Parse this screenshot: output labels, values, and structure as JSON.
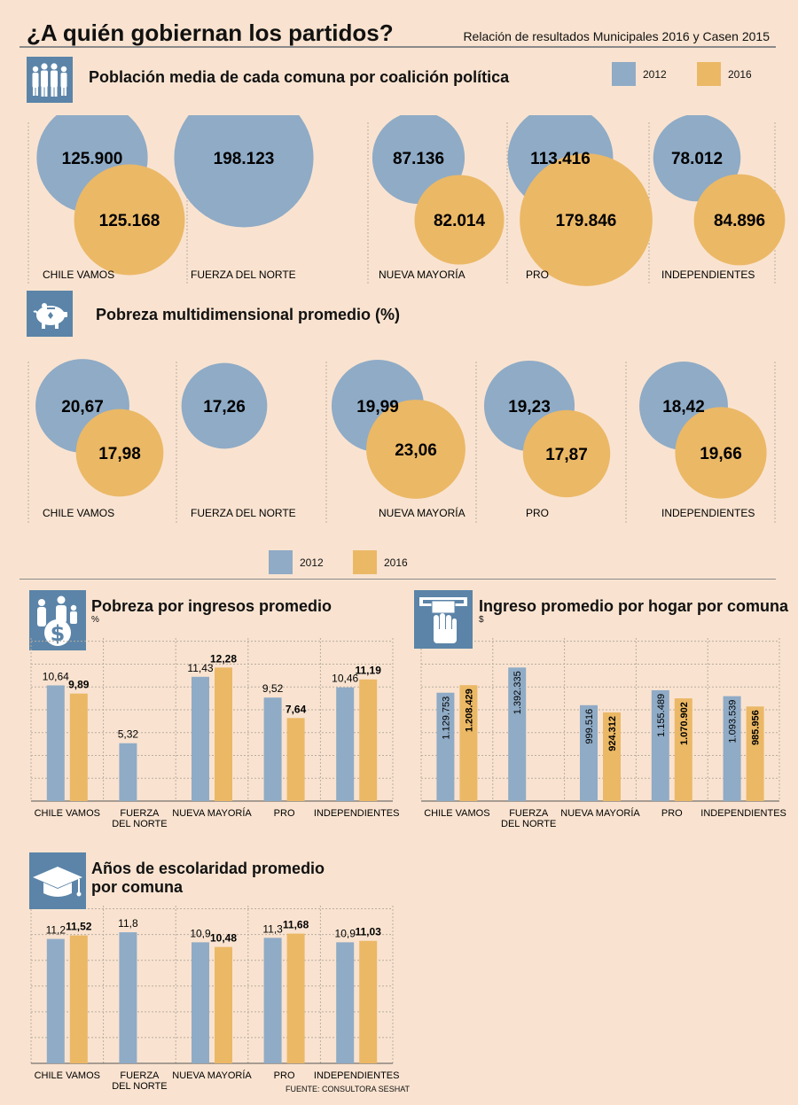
{
  "page": {
    "title": "¿A quién gobiernan los partidos?",
    "subtitle": "Relación de resultados Municipales 2016 y Casen 2015",
    "source": "FUENTE: CONSULTORA SESHAT"
  },
  "colors": {
    "c2012": "#8fabc6",
    "c2016": "#ebb866",
    "icon_bg": "#5b84a8",
    "grid": "#b9aca0"
  },
  "legend": {
    "y2012": "2012",
    "y2016": "2016"
  },
  "icons": {
    "population": "people-group-icon",
    "poverty": "piggy-bank-icon",
    "income_poverty": "family-dollar-icon",
    "household_income": "atm-cash-icon",
    "schooling": "graduation-cap-icon"
  },
  "sections": {
    "population": {
      "title": "Población media de cada comuna por coalición política"
    },
    "poverty": {
      "title": "Pobreza multidimensional promedio (%)"
    },
    "income_poverty": {
      "title": "Pobreza por ingresos promedio",
      "unit": "%"
    },
    "household_income": {
      "title": "Ingreso promedio por hogar por comuna",
      "unit": "$"
    },
    "schooling": {
      "title_line1": "Años de escolaridad promedio",
      "title_line2": "por comuna"
    }
  },
  "chart_data": [
    {
      "id": "population",
      "type": "bubble",
      "title": "Población media de cada comuna por coalición política",
      "categories": [
        "CHILE VAMOS",
        "FUERZA DEL NORTE",
        "NUEVA MAYORÍA",
        "PRO",
        "INDEPENDIENTES"
      ],
      "series": [
        {
          "name": "2012",
          "values": [
            125900,
            198123,
            87136,
            113416,
            78012
          ],
          "labels": [
            "125.900",
            "198.123",
            "87.136",
            "113.416",
            "78.012"
          ]
        },
        {
          "name": "2016",
          "values": [
            125168,
            null,
            82014,
            179846,
            84896
          ],
          "labels": [
            "125.168",
            null,
            "82.014",
            "179.846",
            "84.896"
          ]
        }
      ]
    },
    {
      "id": "poverty",
      "type": "bubble",
      "title": "Pobreza multidimensional promedio (%)",
      "categories": [
        "CHILE VAMOS",
        "FUERZA DEL NORTE",
        "NUEVA MAYORÍA",
        "PRO",
        "INDEPENDIENTES"
      ],
      "series": [
        {
          "name": "2012",
          "values": [
            20.67,
            17.26,
            19.99,
            19.23,
            18.42
          ],
          "labels": [
            "20,67",
            "17,26",
            "19,99",
            "19,23",
            "18,42"
          ]
        },
        {
          "name": "2016",
          "values": [
            17.98,
            null,
            23.06,
            17.87,
            19.66
          ],
          "labels": [
            "17,98",
            null,
            "23,06",
            "17,87",
            "19,66"
          ]
        }
      ]
    },
    {
      "id": "income_poverty",
      "type": "bar",
      "title": "Pobreza por ingresos promedio",
      "ylabel": "%",
      "categories": [
        "CHILE VAMOS",
        "FUERZA DEL NORTE",
        "NUEVA MAYORÍA",
        "PRO",
        "INDEPENDIENTES"
      ],
      "ylim": [
        0,
        15
      ],
      "series": [
        {
          "name": "2012",
          "values": [
            10.64,
            5.32,
            11.43,
            9.52,
            10.46
          ],
          "labels": [
            "10,64",
            "5,32",
            "11,43",
            "9,52",
            "10,46"
          ]
        },
        {
          "name": "2016",
          "values": [
            9.89,
            null,
            12.28,
            7.64,
            11.19
          ],
          "labels": [
            "9,89",
            null,
            "12,28",
            "7,64",
            "11,19"
          ]
        }
      ]
    },
    {
      "id": "household_income",
      "type": "bar",
      "title": "Ingreso promedio por hogar por comuna",
      "ylabel": "$",
      "categories": [
        "CHILE VAMOS",
        "FUERZA DEL NORTE",
        "NUEVA MAYORÍA",
        "PRO",
        "INDEPENDIENTES"
      ],
      "ylim": [
        0,
        1700000
      ],
      "series": [
        {
          "name": "2012",
          "values": [
            1129753,
            1392335,
            999516,
            1155489,
            1093539
          ],
          "labels": [
            "1.129.753",
            "1.392.335",
            "999.516",
            "1.155.489",
            "1.093.539"
          ]
        },
        {
          "name": "2016",
          "values": [
            1208429,
            null,
            924312,
            1070902,
            985956
          ],
          "labels": [
            "1.208.429",
            null,
            "924.312",
            "1.070.902",
            "985.956"
          ]
        }
      ]
    },
    {
      "id": "schooling",
      "type": "bar",
      "title": "Años de escolaridad promedio por comuna",
      "categories": [
        "CHILE VAMOS",
        "FUERZA DEL NORTE",
        "NUEVA MAYORÍA",
        "PRO",
        "INDEPENDIENTES"
      ],
      "ylim": [
        0,
        14.2
      ],
      "series": [
        {
          "name": "2012",
          "values": [
            11.2,
            11.8,
            10.9,
            11.3,
            10.9
          ],
          "labels": [
            "11,2",
            "11,8",
            "10,9",
            "11,3",
            "10,9"
          ]
        },
        {
          "name": "2016",
          "values": [
            11.52,
            null,
            10.48,
            11.68,
            11.03
          ],
          "labels": [
            "11,52",
            null,
            "10,48",
            "11,68",
            "11,03"
          ]
        }
      ]
    }
  ]
}
